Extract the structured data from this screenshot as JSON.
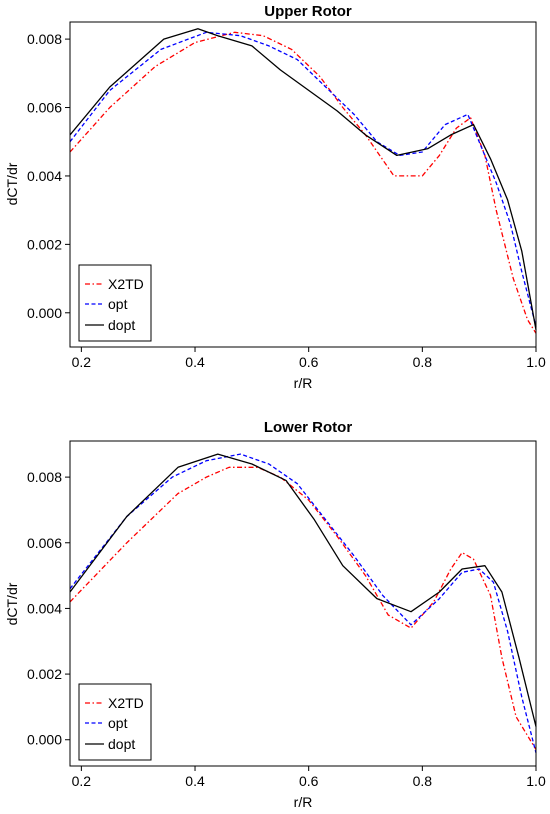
{
  "chart_data": [
    {
      "type": "line",
      "title": "Upper Rotor",
      "xlabel": "r/R",
      "ylabel": "dCT/dr",
      "xlim": [
        0.18,
        1.0
      ],
      "ylim": [
        -0.001,
        0.0085
      ],
      "xticks": [
        0.2,
        0.4,
        0.6,
        0.8,
        1.0
      ],
      "xtick_labels": [
        "0.2",
        "0.4",
        "0.6",
        "0.8",
        "1.0"
      ],
      "yticks": [
        0.0,
        0.002,
        0.004,
        0.006,
        0.008
      ],
      "ytick_labels": [
        "0.000",
        "0.002",
        "0.004",
        "0.006",
        "0.008"
      ],
      "grid": false,
      "legend_position": "bottom-left",
      "series": [
        {
          "name": "X2TD",
          "color": "#ff0000",
          "dash": "dashdot",
          "x": [
            0.18,
            0.25,
            0.33,
            0.4,
            0.47,
            0.52,
            0.57,
            0.62,
            0.66,
            0.7,
            0.75,
            0.8,
            0.83,
            0.86,
            0.885,
            0.91,
            0.93,
            0.96,
            0.985,
            1.0
          ],
          "y": [
            0.0047,
            0.006,
            0.0072,
            0.0079,
            0.0082,
            0.0081,
            0.0077,
            0.0069,
            0.006,
            0.0052,
            0.004,
            0.004,
            0.0046,
            0.0054,
            0.0057,
            0.0046,
            0.003,
            0.001,
            -0.0002,
            -0.0006
          ]
        },
        {
          "name": "opt",
          "color": "#0000ff",
          "dash": "dashed",
          "x": [
            0.18,
            0.25,
            0.34,
            0.42,
            0.48,
            0.53,
            0.58,
            0.63,
            0.68,
            0.72,
            0.76,
            0.8,
            0.84,
            0.88,
            0.905,
            0.93,
            0.955,
            0.975,
            1.0
          ],
          "y": [
            0.005,
            0.0065,
            0.0077,
            0.0082,
            0.0081,
            0.0078,
            0.0074,
            0.0066,
            0.0058,
            0.005,
            0.0046,
            0.0047,
            0.0055,
            0.0058,
            0.0048,
            0.0038,
            0.0026,
            0.0012,
            -0.0004
          ]
        },
        {
          "name": "dopt",
          "color": "#000000",
          "dash": "solid",
          "x": [
            0.18,
            0.25,
            0.345,
            0.405,
            0.44,
            0.5,
            0.55,
            0.6,
            0.65,
            0.7,
            0.755,
            0.81,
            0.85,
            0.89,
            0.92,
            0.95,
            0.975,
            1.0
          ],
          "y": [
            0.0052,
            0.0066,
            0.008,
            0.0083,
            0.0081,
            0.0078,
            0.0071,
            0.0065,
            0.0059,
            0.0052,
            0.0046,
            0.0048,
            0.0052,
            0.0055,
            0.0045,
            0.0033,
            0.0018,
            -0.0005
          ]
        }
      ]
    },
    {
      "type": "line",
      "title": "Lower Rotor",
      "xlabel": "r/R",
      "ylabel": "dCT/dr",
      "xlim": [
        0.18,
        1.0
      ],
      "ylim": [
        -0.0008,
        0.0091
      ],
      "xticks": [
        0.2,
        0.4,
        0.6,
        0.8,
        1.0
      ],
      "xtick_labels": [
        "0.2",
        "0.4",
        "0.6",
        "0.8",
        "1.0"
      ],
      "yticks": [
        0.0,
        0.002,
        0.004,
        0.006,
        0.008
      ],
      "ytick_labels": [
        "0.000",
        "0.002",
        "0.004",
        "0.006",
        "0.008"
      ],
      "grid": false,
      "legend_position": "bottom-left",
      "series": [
        {
          "name": "X2TD",
          "color": "#ff0000",
          "dash": "dashdot",
          "x": [
            0.18,
            0.28,
            0.37,
            0.42,
            0.46,
            0.51,
            0.55,
            0.6,
            0.65,
            0.7,
            0.74,
            0.78,
            0.82,
            0.85,
            0.87,
            0.89,
            0.92,
            0.94,
            0.965,
            1.0
          ],
          "y": [
            0.0042,
            0.006,
            0.0075,
            0.008,
            0.0083,
            0.0083,
            0.008,
            0.0073,
            0.0062,
            0.005,
            0.0038,
            0.0034,
            0.0042,
            0.0052,
            0.0057,
            0.0055,
            0.0044,
            0.0025,
            0.0007,
            -0.0003
          ]
        },
        {
          "name": "opt",
          "color": "#0000ff",
          "dash": "dashed",
          "x": [
            0.18,
            0.28,
            0.36,
            0.42,
            0.48,
            0.53,
            0.58,
            0.63,
            0.68,
            0.73,
            0.78,
            0.83,
            0.87,
            0.9,
            0.925,
            0.95,
            0.975,
            1.0
          ],
          "y": [
            0.0046,
            0.0068,
            0.008,
            0.0085,
            0.0087,
            0.0084,
            0.0078,
            0.0067,
            0.0056,
            0.0044,
            0.0035,
            0.0043,
            0.0051,
            0.0052,
            0.0048,
            0.0033,
            0.0013,
            -0.0004
          ]
        },
        {
          "name": "dopt",
          "color": "#000000",
          "dash": "solid",
          "x": [
            0.18,
            0.28,
            0.37,
            0.44,
            0.5,
            0.56,
            0.61,
            0.66,
            0.72,
            0.78,
            0.83,
            0.87,
            0.91,
            0.94,
            0.97,
            1.0
          ],
          "y": [
            0.0045,
            0.0068,
            0.0083,
            0.0087,
            0.0084,
            0.0079,
            0.0067,
            0.0053,
            0.0043,
            0.0039,
            0.0045,
            0.0052,
            0.0053,
            0.0045,
            0.0025,
            0.0004
          ]
        }
      ]
    }
  ]
}
